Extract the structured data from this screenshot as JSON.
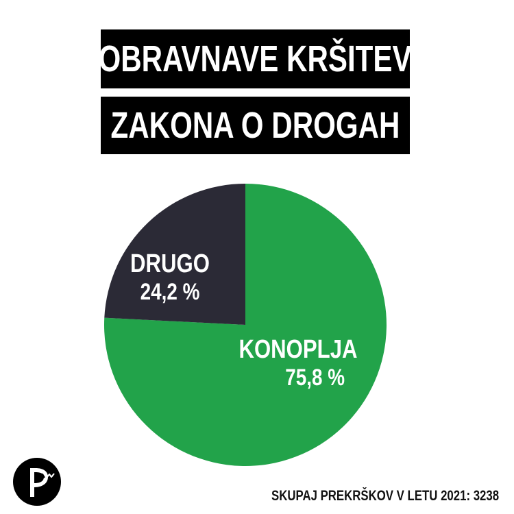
{
  "title": {
    "line1": "OBRAVNAVE KRŠITEV",
    "line2": "ZAKONA O DROGAH"
  },
  "chart_data": {
    "type": "pie",
    "slices": [
      {
        "label": "KONOPLJA",
        "value": 75.8,
        "value_label": "75,8 %",
        "color": "#22a34a"
      },
      {
        "label": "DRUGO",
        "value": 24.2,
        "value_label": "24,2 %",
        "color": "#2b2a36"
      }
    ]
  },
  "footer": {
    "text": "SKUPAJ PREKRŠKOV V LETU 2021: 3238"
  },
  "logo": {
    "icon": "pirate-party-logo-icon",
    "color": "#000000"
  }
}
